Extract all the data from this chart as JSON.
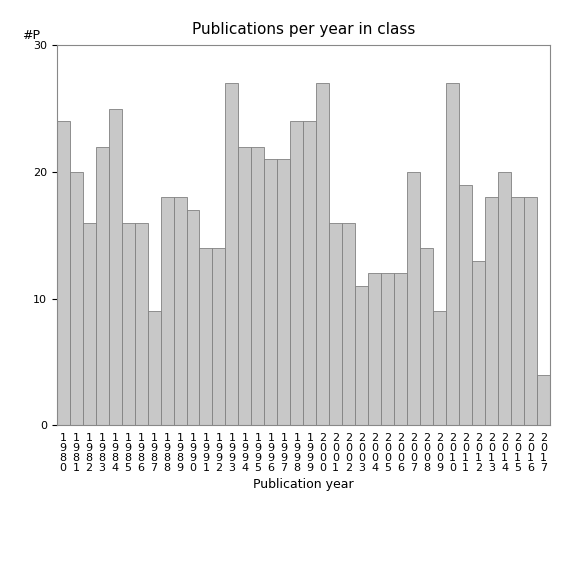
{
  "title": "Publications per year in class",
  "xlabel": "Publication year",
  "ylabel": "#P",
  "bar_color": "#c8c8c8",
  "edge_color": "#808080",
  "categories": [
    "1980",
    "1981",
    "1982",
    "1983",
    "1984",
    "1985",
    "1986",
    "1987",
    "1988",
    "1989",
    "1990",
    "1991",
    "1992",
    "1993",
    "1994",
    "1995",
    "1996",
    "1997",
    "1998",
    "1999",
    "2000",
    "2001",
    "2002",
    "2003",
    "2004",
    "2005",
    "2006",
    "2007",
    "2008",
    "2009",
    "2010",
    "2011",
    "2012",
    "2013",
    "2014",
    "2015",
    "2016",
    "2017"
  ],
  "values": [
    24,
    20,
    16,
    22,
    25,
    16,
    16,
    9,
    18,
    18,
    17,
    14,
    14,
    27,
    22,
    22,
    21,
    21,
    24,
    24,
    27,
    16,
    16,
    11,
    12,
    12,
    12,
    20,
    14,
    9,
    27,
    19,
    13,
    18,
    20,
    18,
    18,
    4
  ],
  "ylim": [
    0,
    30
  ],
  "yticks": [
    0,
    10,
    20,
    30
  ],
  "background_color": "#ffffff",
  "title_fontsize": 11,
  "label_fontsize": 9,
  "tick_fontsize": 8
}
